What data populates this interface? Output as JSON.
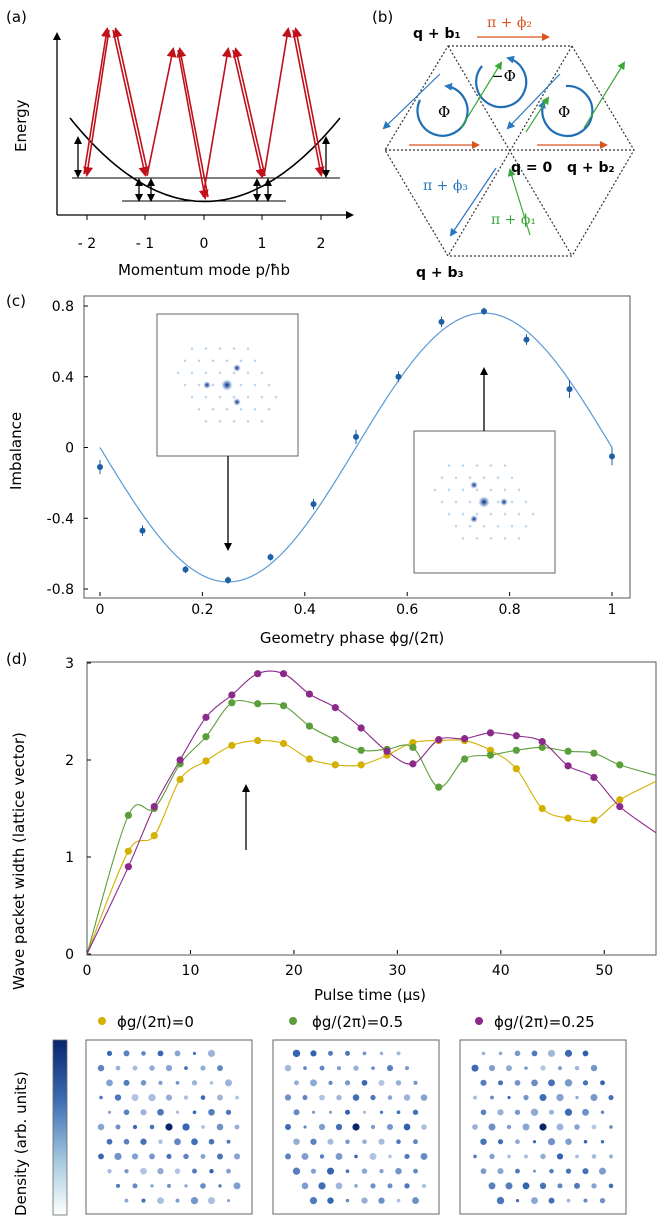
{
  "panel_labels": {
    "a": "(a)",
    "b": "(b)",
    "c": "(c)",
    "d": "(d)"
  },
  "panel_a": {
    "ylabel": "Energy",
    "xlabel": "Momentum mode p/ħb",
    "xticks": [
      "- 2",
      "- 1",
      "0",
      "1",
      "2"
    ]
  },
  "panel_b": {
    "labels": {
      "q_b1": "q + b₁",
      "q_b2": "q + b₂",
      "q_b3": "q + b₃",
      "q0": "q = 0",
      "phi2": "π + ϕ₂",
      "phi3": "π + ϕ₃",
      "phi1": "π + ϕ₁",
      "Phi_left": "Φ",
      "Phi_mid": "−Φ",
      "Phi_right": "Φ"
    }
  },
  "chart_data": [
    {
      "type": "scatter",
      "panel": "c",
      "xlabel": "Geometry phase ϕg/(2π)",
      "ylabel": "Imbalance",
      "xlim": [
        0,
        1
      ],
      "ylim": [
        -0.8,
        0.8
      ],
      "xticks": [
        "0",
        "0.2",
        "0.4",
        "0.6",
        "0.8",
        "1"
      ],
      "yticks": [
        "0.8",
        "0.4",
        "0",
        "-0.4",
        "-0.8"
      ],
      "x": [
        0.0,
        0.083,
        0.167,
        0.25,
        0.333,
        0.417,
        0.5,
        0.583,
        0.667,
        0.75,
        0.833,
        0.917,
        1.0
      ],
      "y": [
        -0.11,
        -0.47,
        -0.69,
        -0.75,
        -0.62,
        -0.32,
        0.06,
        0.4,
        0.71,
        0.77,
        0.61,
        0.33,
        -0.05
      ],
      "err": [
        0.04,
        0.03,
        0.02,
        0.02,
        0.02,
        0.03,
        0.04,
        0.03,
        0.03,
        0.02,
        0.03,
        0.05,
        0.05
      ],
      "fit": "y = 0.76 sin(2π x + π)",
      "grid": false
    },
    {
      "type": "scatter",
      "panel": "d",
      "xlabel": "Pulse time (μs)",
      "ylabel": "Wave packet width (lattice vector)",
      "xlim": [
        0,
        55
      ],
      "ylim": [
        0,
        3
      ],
      "xticks": [
        "0",
        "10",
        "20",
        "30",
        "40",
        "50"
      ],
      "yticks": [
        "3",
        "2",
        "1",
        "0"
      ],
      "legend_position": "bottom",
      "series": [
        {
          "name": "ϕg/(2π)=0",
          "color": "#d4b000",
          "x": [
            4,
            6.5,
            9,
            11.5,
            14,
            16.5,
            19,
            21.5,
            24,
            26.5,
            29,
            31.5,
            34,
            36.5,
            39,
            41.5,
            44,
            46.5,
            49,
            51.5
          ],
          "y": [
            1.06,
            1.22,
            1.8,
            1.99,
            2.15,
            2.2,
            2.17,
            2.01,
            1.95,
            1.95,
            2.05,
            2.18,
            2.2,
            2.2,
            2.1,
            1.91,
            1.5,
            1.4,
            1.38,
            1.59
          ]
        },
        {
          "name": "ϕg/(2π)=0.5",
          "color": "#5c9e3a",
          "x": [
            4,
            6.5,
            9,
            11.5,
            14,
            16.5,
            19,
            21.5,
            24,
            26.5,
            29,
            31.5,
            34,
            36.5,
            39,
            41.5,
            44,
            46.5,
            49,
            51.5
          ],
          "y": [
            1.43,
            1.5,
            1.96,
            2.24,
            2.59,
            2.58,
            2.56,
            2.35,
            2.21,
            2.1,
            2.11,
            2.13,
            1.72,
            2.01,
            2.05,
            2.1,
            2.13,
            2.09,
            2.07,
            1.95
          ]
        },
        {
          "name": "ϕg/(2π)=0.25",
          "color": "#8b2a8b",
          "x": [
            4,
            6.5,
            9,
            11.5,
            14,
            16.5,
            19,
            21.5,
            24,
            26.5,
            29,
            31.5,
            34,
            36.5,
            39,
            41.5,
            44,
            46.5,
            49,
            51.5
          ],
          "y": [
            0.9,
            1.52,
            2.0,
            2.44,
            2.67,
            2.89,
            2.89,
            2.68,
            2.54,
            2.33,
            2.09,
            1.96,
            2.21,
            2.22,
            2.28,
            2.25,
            2.19,
            1.94,
            1.82,
            1.52
          ]
        }
      ]
    }
  ],
  "colorbar": {
    "label": "Density (arb. units)"
  }
}
